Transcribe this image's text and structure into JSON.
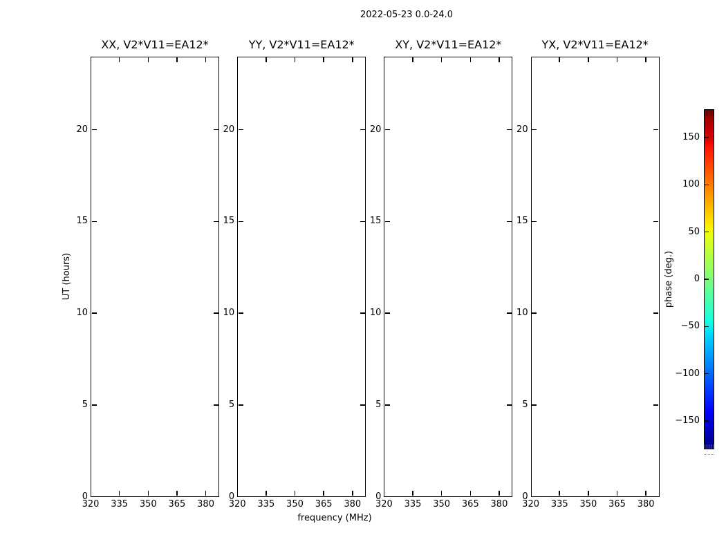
{
  "figure": {
    "background": "#ffffff",
    "text_color": "#000000"
  },
  "chart_data": {
    "type": "heatmap",
    "title": "2022-05-23 0.0-24.0",
    "xlabel": "frequency (MHz)",
    "ylabel": "UT (hours)",
    "legend": "none",
    "grid": false,
    "panels": [
      {
        "title": "XX, V2*V11=EA12*",
        "polarization": "XX"
      },
      {
        "title": "YY, V2*V11=EA12*",
        "polarization": "YY"
      },
      {
        "title": "XY, V2*V11=EA12*",
        "polarization": "XY"
      },
      {
        "title": "YX, V2*V11=EA12*",
        "polarization": "YX"
      }
    ],
    "x_axis": {
      "ticks": [
        320,
        335,
        350,
        365,
        380
      ],
      "lim": [
        320,
        387
      ],
      "unit": "MHz"
    },
    "y_axis": {
      "ticks": [
        0,
        5,
        10,
        15,
        20
      ],
      "lim": [
        0,
        24
      ],
      "unit": "hours"
    },
    "values": [],
    "colorbar": {
      "label": "phase (deg.)",
      "lim": [
        -180,
        180
      ],
      "colormap": "jet",
      "ticks": [
        {
          "value": 150,
          "label": "150"
        },
        {
          "value": 100,
          "label": "100"
        },
        {
          "value": 50,
          "label": "50"
        },
        {
          "value": 0,
          "label": "0"
        },
        {
          "value": -50,
          "label": "−50"
        },
        {
          "value": -100,
          "label": "−100"
        },
        {
          "value": -150,
          "label": "−150"
        }
      ],
      "colormap_stops": [
        {
          "pos": 0.0,
          "color": "#000080"
        },
        {
          "pos": 0.11,
          "color": "#0000ff"
        },
        {
          "pos": 0.34,
          "color": "#00dbff"
        },
        {
          "pos": 0.375,
          "color": "#14ffe2"
        },
        {
          "pos": 0.5,
          "color": "#7bff7b"
        },
        {
          "pos": 0.64,
          "color": "#eeff08"
        },
        {
          "pos": 0.66,
          "color": "#ffec00"
        },
        {
          "pos": 0.75,
          "color": "#ff9700"
        },
        {
          "pos": 0.89,
          "color": "#ff1300"
        },
        {
          "pos": 0.91,
          "color": "#e80000"
        },
        {
          "pos": 1.0,
          "color": "#800000"
        }
      ]
    }
  }
}
